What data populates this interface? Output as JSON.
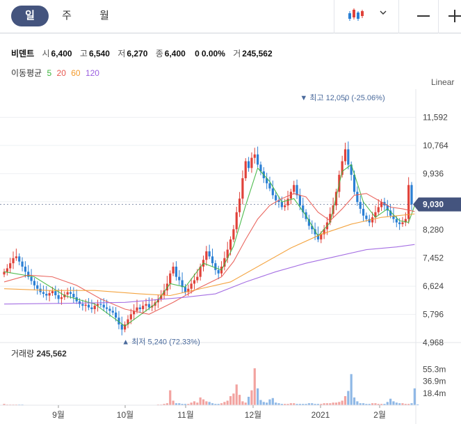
{
  "tabs": [
    {
      "label": "일",
      "active": true
    },
    {
      "label": "주",
      "active": false
    },
    {
      "label": "월",
      "active": false
    }
  ],
  "toolbar": {
    "chart_type_icon": "candlestick-icon",
    "dropdown_icon": "chevron-down-icon",
    "zoom_out_icon": "minus-icon",
    "zoom_in_icon": "plus-icon"
  },
  "quote": {
    "name": "비덴트",
    "open_label": "시",
    "open": "6,400",
    "high_label": "고",
    "high": "6,540",
    "low_label": "저",
    "low": "6,270",
    "close_label": "종",
    "close": "6,400",
    "change": "0",
    "change_pct": "0.00%",
    "volume_label": "거",
    "volume": "245,562"
  },
  "ma_legend": {
    "title": "이동평균",
    "items": [
      {
        "label": "5",
        "color": "#3cb53c"
      },
      {
        "label": "20",
        "color": "#e8574f"
      },
      {
        "label": "60",
        "color": "#f39a2b"
      },
      {
        "label": "120",
        "color": "#9b5fe0"
      }
    ]
  },
  "scale_mode": "Linear",
  "volume_panel": {
    "title": "거래량",
    "value": "245,562",
    "ticks": [
      "55.3m",
      "36.9m",
      "18.4m"
    ]
  },
  "chart_data": {
    "type": "candlestick",
    "y_ticks": [
      "11,592",
      "10,764",
      "9,936",
      "9,108",
      "8,280",
      "7,452",
      "6,624",
      "5,796",
      "4,968"
    ],
    "y_tick_values": [
      11592,
      10764,
      9936,
      9108,
      8280,
      7452,
      6624,
      5796,
      4968
    ],
    "ylim": [
      4968,
      12420
    ],
    "x_ticks": [
      "9월",
      "10월",
      "11월",
      "12월",
      "2021",
      "2월"
    ],
    "current_price_label": "9,030",
    "current_price": 9030,
    "high_annotation": "최고 12,050 (-25.06%)",
    "high_value": 12050,
    "low_annotation": "최저 5,240 (72.33%)",
    "low_value": 5240,
    "close_series": [
      7050,
      7150,
      7300,
      7450,
      7500,
      7350,
      7200,
      7050,
      6900,
      6780,
      6650,
      6550,
      6450,
      6400,
      6350,
      6420,
      6480,
      6360,
      6250,
      6300,
      6380,
      6450,
      6400,
      6300,
      6180,
      6100,
      6050,
      6080,
      6000,
      5950,
      6050,
      6100,
      6080,
      6000,
      5960,
      5900,
      5850,
      5700,
      5500,
      5350,
      5500,
      5650,
      5800,
      5900,
      6000,
      5950,
      6050,
      6100,
      6000,
      6050,
      6150,
      6250,
      6350,
      6500,
      6700,
      7000,
      7200,
      6900,
      6800,
      6600,
      6450,
      6550,
      6700,
      6800,
      6900,
      7200,
      7400,
      7650,
      7500,
      7300,
      7100,
      7000,
      7200,
      7450,
      7700,
      8000,
      8300,
      8800,
      9200,
      9800,
      10300,
      10100,
      10400,
      10500,
      10200,
      10000,
      9800,
      9650,
      9500,
      9300,
      9150,
      9100,
      8950,
      9000,
      9200,
      9400,
      9600,
      9300,
      9000,
      8800,
      8600,
      8400,
      8300,
      8150,
      8000,
      8150,
      8300,
      8500,
      8750,
      9000,
      9400,
      9900,
      10300,
      10650,
      10200,
      9900,
      9400,
      9100,
      8900,
      8700,
      8600,
      8500,
      8650,
      8800,
      8950,
      9100,
      9000,
      8850,
      8700,
      8600,
      8500,
      8450,
      8500,
      8600,
      9600,
      9030
    ],
    "ma_series": [
      {
        "name": "5",
        "color": "#3cb53c",
        "points": [
          [
            0,
            7050
          ],
          [
            10,
            6900
          ],
          [
            20,
            6350
          ],
          [
            30,
            6100
          ],
          [
            40,
            5450
          ],
          [
            50,
            6100
          ],
          [
            55,
            6700
          ],
          [
            60,
            6600
          ],
          [
            66,
            7300
          ],
          [
            72,
            7100
          ],
          [
            76,
            7800
          ],
          [
            80,
            9000
          ],
          [
            84,
            10100
          ],
          [
            88,
            9700
          ],
          [
            92,
            9100
          ],
          [
            96,
            9200
          ],
          [
            100,
            8700
          ],
          [
            104,
            8100
          ],
          [
            108,
            8500
          ],
          [
            112,
            10000
          ],
          [
            115,
            10200
          ],
          [
            119,
            9100
          ],
          [
            123,
            8650
          ],
          [
            127,
            8900
          ],
          [
            131,
            8550
          ],
          [
            134,
            8500
          ],
          [
            136,
            9000
          ]
        ]
      },
      {
        "name": "20",
        "color": "#e8574f",
        "points": [
          [
            0,
            6750
          ],
          [
            8,
            6950
          ],
          [
            16,
            6900
          ],
          [
            24,
            6650
          ],
          [
            32,
            6250
          ],
          [
            40,
            5950
          ],
          [
            48,
            5800
          ],
          [
            56,
            6150
          ],
          [
            64,
            6550
          ],
          [
            72,
            6900
          ],
          [
            76,
            7350
          ],
          [
            80,
            8000
          ],
          [
            84,
            8600
          ],
          [
            88,
            9000
          ],
          [
            92,
            9200
          ],
          [
            96,
            9350
          ],
          [
            100,
            9250
          ],
          [
            104,
            8800
          ],
          [
            108,
            8550
          ],
          [
            112,
            8900
          ],
          [
            116,
            9300
          ],
          [
            120,
            9350
          ],
          [
            124,
            9150
          ],
          [
            128,
            8950
          ],
          [
            132,
            8900
          ],
          [
            136,
            8820
          ]
        ]
      },
      {
        "name": "60",
        "color": "#f39a2b",
        "points": [
          [
            0,
            6550
          ],
          [
            15,
            6500
          ],
          [
            30,
            6500
          ],
          [
            45,
            6400
          ],
          [
            55,
            6350
          ],
          [
            65,
            6550
          ],
          [
            75,
            6750
          ],
          [
            85,
            7250
          ],
          [
            95,
            7750
          ],
          [
            105,
            8150
          ],
          [
            115,
            8450
          ],
          [
            125,
            8650
          ],
          [
            136,
            8750
          ]
        ]
      },
      {
        "name": "120",
        "color": "#9b5fe0",
        "points": [
          [
            0,
            6100
          ],
          [
            20,
            6120
          ],
          [
            40,
            6150
          ],
          [
            60,
            6300
          ],
          [
            70,
            6400
          ],
          [
            80,
            6750
          ],
          [
            90,
            7050
          ],
          [
            100,
            7300
          ],
          [
            110,
            7500
          ],
          [
            120,
            7700
          ],
          [
            130,
            7780
          ],
          [
            136,
            7850
          ]
        ]
      }
    ],
    "volume_ticks": [
      55.3,
      36.9,
      18.4
    ],
    "volume_max": 72,
    "volume_series": [
      2,
      1,
      1,
      1,
      1,
      1,
      1,
      0.5,
      0.5,
      0.5,
      0.5,
      0.5,
      0.5,
      0.5,
      0.5,
      0.5,
      0.5,
      0.5,
      0.5,
      0.5,
      0.5,
      0.5,
      0.5,
      0.5,
      0.5,
      0.5,
      0.5,
      0.5,
      0.5,
      0.5,
      0.5,
      0.5,
      0.5,
      0.5,
      0.5,
      0.5,
      0.5,
      0.5,
      0.5,
      0.5,
      0.5,
      0.5,
      0.5,
      0.5,
      0.5,
      0.5,
      0.5,
      0.5,
      0.5,
      0.5,
      0.5,
      1,
      1,
      2,
      3,
      23,
      7,
      3,
      3,
      2,
      2,
      2,
      4,
      6,
      4,
      12,
      9,
      6,
      5,
      3,
      2,
      2,
      3,
      5,
      7,
      14,
      18,
      32,
      16,
      6,
      4,
      13,
      23,
      57,
      26,
      8,
      5,
      4,
      9,
      11,
      4,
      3,
      2,
      2,
      2,
      3,
      3,
      2,
      2,
      2,
      2,
      3,
      3,
      2,
      2,
      2,
      3,
      3,
      3,
      4,
      4,
      5,
      7,
      14,
      22,
      48,
      12,
      6,
      3,
      3,
      2,
      2,
      3,
      3,
      2,
      2,
      2,
      5,
      10,
      6,
      4,
      3,
      3,
      2,
      2,
      3,
      26,
      1
    ]
  }
}
